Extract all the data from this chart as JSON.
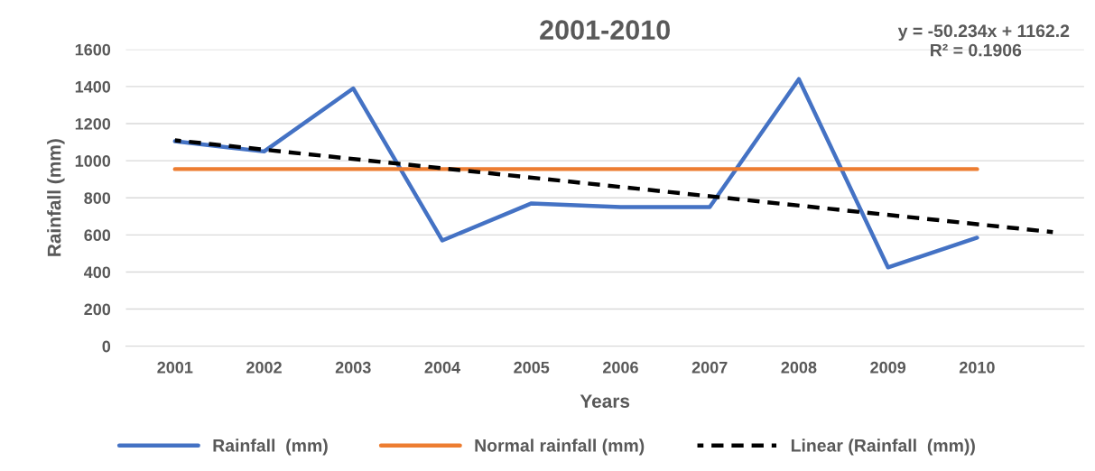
{
  "chart_data": {
    "type": "line",
    "title": "2001-2010",
    "xlabel": "Years",
    "ylabel": "Rainfall (mm)",
    "x": [
      2001,
      2002,
      2003,
      2004,
      2005,
      2006,
      2007,
      2008,
      2009,
      2010
    ],
    "xlim": [
      2000.45,
      2011.2
    ],
    "xticks": [
      2001,
      2002,
      2003,
      2004,
      2005,
      2006,
      2007,
      2008,
      2009,
      2010
    ],
    "ylim": [
      0,
      1600
    ],
    "yticks": [
      0,
      200,
      400,
      600,
      800,
      1000,
      1200,
      1400,
      1600
    ],
    "grid": "y",
    "legend": "bottom",
    "marker": "none",
    "series": [
      {
        "name": "Rainfall  (mm)",
        "color": "#4472c4",
        "values": [
          1105,
          1050,
          1390,
          570,
          770,
          750,
          750,
          1440,
          425,
          585
        ]
      },
      {
        "name": "Normal rainfall (mm)",
        "color": "#ed7d31",
        "values": [
          955,
          955,
          955,
          955,
          955,
          955,
          955,
          955,
          955,
          955
        ]
      },
      {
        "name": "Linear (Rainfall  (mm))",
        "color": "#000000",
        "line_style": "dashed",
        "x": [
          2001,
          2010.85
        ],
        "values": [
          1110,
          615
        ]
      }
    ],
    "annotations": [
      "y = -50.234x + 1162.2",
      "R² = 0.1906"
    ]
  }
}
